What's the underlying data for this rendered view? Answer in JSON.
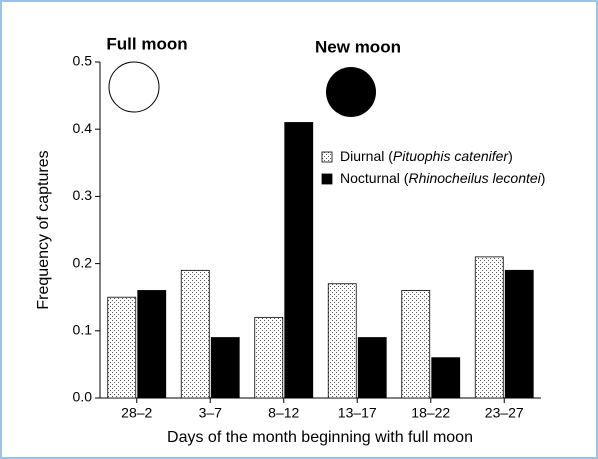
{
  "chart_data": {
    "type": "bar",
    "xlabel": "Days of the month beginning with full moon",
    "ylabel": "Frequency of captures",
    "annotations": [
      "Full moon",
      "New moon"
    ],
    "categories": [
      "28–2",
      "3–7",
      "8–12",
      "13–17",
      "18–22",
      "23–27"
    ],
    "series": [
      {
        "name": "Diurnal (Pituophis catenifer)",
        "color": "stipple",
        "values": [
          0.15,
          0.19,
          0.12,
          0.17,
          0.16,
          0.21
        ]
      },
      {
        "name": "Nocturnal (Rhinocheilus lecontei)",
        "color": "#000000",
        "values": [
          0.16,
          0.09,
          0.41,
          0.09,
          0.06,
          0.19
        ]
      }
    ],
    "ylim": [
      0,
      0.5
    ],
    "yticks": [
      {
        "value": 0,
        "label": "0.0"
      },
      0.1,
      0.2,
      0.3,
      0.4,
      0.5
    ],
    "legend": "right"
  }
}
